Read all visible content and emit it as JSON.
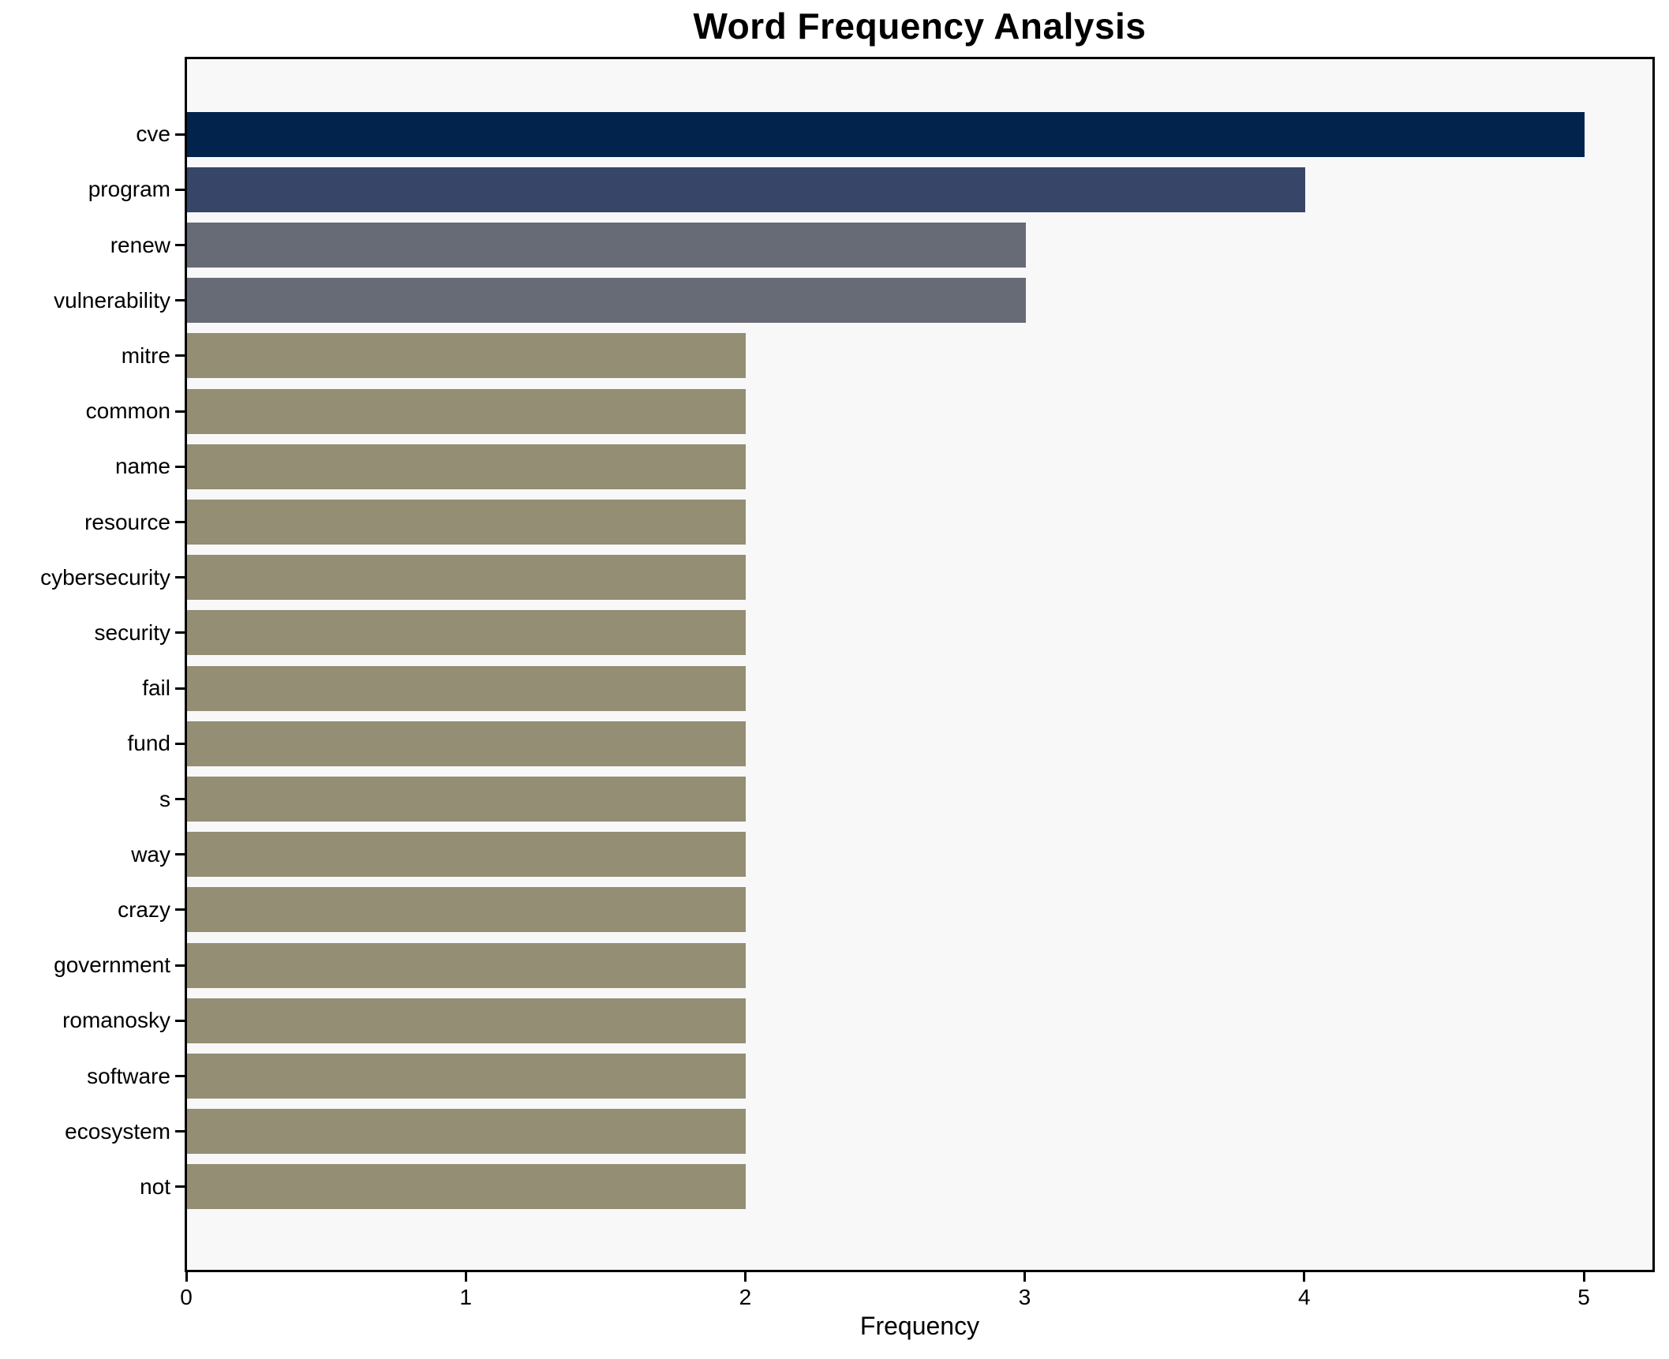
{
  "page": {
    "background": "#ffffff"
  },
  "chart_data": {
    "type": "bar",
    "orientation": "horizontal",
    "title": "Word Frequency Analysis",
    "xlabel": "Frequency",
    "ylabel": "",
    "xticks": [
      0,
      1,
      2,
      3,
      4,
      5
    ],
    "xlim": [
      0,
      5.25
    ],
    "grid": false,
    "legend_position": "none",
    "plot_background": "#f8f8f8",
    "axis_color": "#000000",
    "categories": [
      "cve",
      "program",
      "renew",
      "vulnerability",
      "mitre",
      "common",
      "name",
      "resource",
      "cybersecurity",
      "security",
      "fail",
      "fund",
      "s",
      "way",
      "crazy",
      "government",
      "romanosky",
      "software",
      "ecosystem",
      "not"
    ],
    "values": [
      5,
      4,
      3,
      3,
      2,
      2,
      2,
      2,
      2,
      2,
      2,
      2,
      2,
      2,
      2,
      2,
      2,
      2,
      2,
      2
    ],
    "bar_colors": [
      "#02234c",
      "#374569",
      "#676b76",
      "#676b76",
      "#938e74",
      "#938e74",
      "#938e74",
      "#938e74",
      "#938e74",
      "#938e74",
      "#938e74",
      "#938e74",
      "#938e74",
      "#938e74",
      "#938e74",
      "#938e74",
      "#938e74",
      "#938e74",
      "#938e74",
      "#938e74"
    ]
  }
}
